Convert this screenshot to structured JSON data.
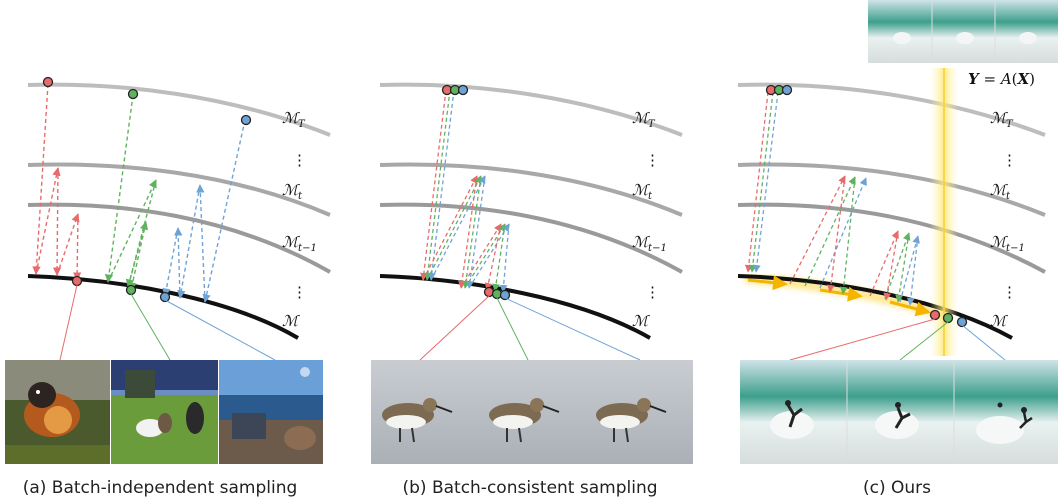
{
  "panels": [
    {
      "caption": "(a) Batch-independent sampling",
      "labels": {
        "t_top": "T",
        "t_mid": "t",
        "t_prev": "t−1",
        "base": "M",
        "dots": "⋮"
      }
    },
    {
      "caption": "(b) Batch-consistent sampling",
      "labels": {
        "t_top": "T",
        "t_mid": "t",
        "t_prev": "t−1",
        "base": "M",
        "dots": "⋮"
      }
    },
    {
      "caption": "(c) Ours",
      "labels": {
        "t_top": "T",
        "t_mid": "t",
        "t_prev": "t−1",
        "base": "M",
        "dots": "⋮"
      },
      "equation": {
        "lhs": "Y",
        "eq": " = ",
        "op": "A",
        "arg": "X"
      }
    }
  ],
  "colors": {
    "red": "#e86b6b",
    "green": "#5fb35f",
    "blue": "#6fa3d6",
    "highlight": "#ffe66b",
    "manifold": "#b5b5b5",
    "data_manifold": "#111111"
  }
}
